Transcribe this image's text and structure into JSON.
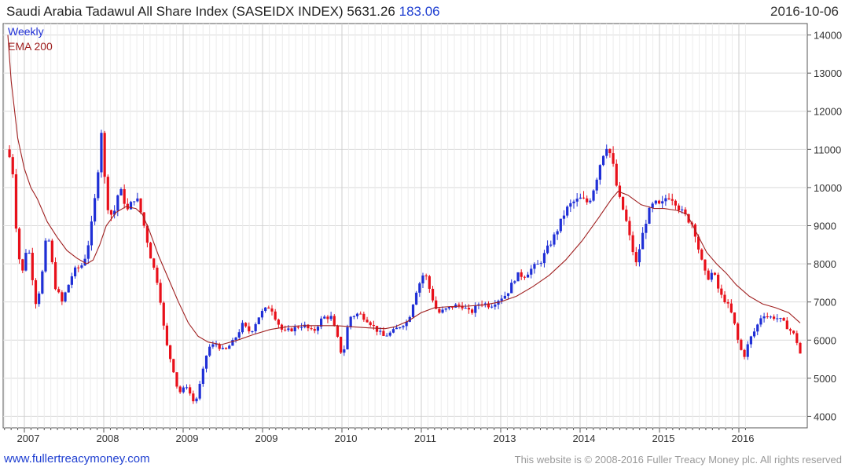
{
  "header": {
    "title": "Saudi Arabia Tadawul All Share Index (SASEIDX INDEX)",
    "last_value": "5631.26",
    "change": "183.06",
    "date": "2016-10-06"
  },
  "legend": {
    "weekly": "Weekly",
    "ema": "EMA 200"
  },
  "colors": {
    "up": "#1f2fd6",
    "down": "#e8101a",
    "ema": "#a02020",
    "grid": "#d9d9d9",
    "accent": "#1f3fd1"
  },
  "footer": {
    "website": "www.fullertreacymoney.com",
    "copyright": "This website is © 2008-2016 Fuller Treacy Money plc. All rights reserved"
  },
  "chart_data": {
    "type": "candlestick",
    "period": "weekly",
    "yticks": [
      4000,
      5000,
      6000,
      7000,
      8000,
      9000,
      10000,
      11000,
      12000,
      13000,
      14000
    ],
    "xtick_labels": [
      "2007",
      "2008",
      "2009",
      "2009",
      "2010",
      "2011",
      "2013",
      "2014",
      "2015",
      "2016"
    ],
    "ylim": [
      3700,
      14300
    ],
    "grid": true,
    "legend_position": "top-left",
    "price_path": [
      [
        0,
        11000
      ],
      [
        1.5,
        10400
      ],
      [
        3,
        8300
      ],
      [
        4.5,
        7800
      ],
      [
        6,
        8600
      ],
      [
        8.5,
        7000
      ],
      [
        10,
        7400
      ],
      [
        12,
        8900
      ],
      [
        14.5,
        7400
      ],
      [
        16.5,
        7000
      ],
      [
        20,
        7800
      ],
      [
        23,
        8000
      ],
      [
        25,
        8700
      ],
      [
        27,
        10000
      ],
      [
        28.5,
        11500
      ],
      [
        30,
        9600
      ],
      [
        32,
        9200
      ],
      [
        34,
        10000
      ],
      [
        36.5,
        9400
      ],
      [
        39,
        9800
      ],
      [
        41,
        9200
      ],
      [
        43.5,
        8200
      ],
      [
        46,
        7400
      ],
      [
        48,
        6000
      ],
      [
        50.5,
        5200
      ],
      [
        52,
        4600
      ],
      [
        54.5,
        4800
      ],
      [
        57,
        4300
      ],
      [
        59,
        5000
      ],
      [
        61,
        5800
      ],
      [
        63.5,
        5900
      ],
      [
        66,
        5700
      ],
      [
        69,
        6000
      ],
      [
        71.5,
        6400
      ],
      [
        74,
        6200
      ],
      [
        77,
        6700
      ],
      [
        80,
        6900
      ],
      [
        82,
        6500
      ],
      [
        84,
        6200
      ],
      [
        87,
        6300
      ],
      [
        90,
        6400
      ],
      [
        93,
        6200
      ],
      [
        96,
        6600
      ],
      [
        98.5,
        6600
      ],
      [
        101,
        5900
      ],
      [
        102,
        5500
      ],
      [
        104,
        6600
      ],
      [
        107,
        6700
      ],
      [
        110,
        6500
      ],
      [
        112,
        6300
      ],
      [
        114.5,
        6100
      ],
      [
        117,
        6200
      ],
      [
        120,
        6400
      ],
      [
        122,
        6500
      ],
      [
        124.5,
        7300
      ],
      [
        127,
        7800
      ],
      [
        129,
        7200
      ],
      [
        131,
        6700
      ],
      [
        133.5,
        6800
      ],
      [
        136,
        6900
      ],
      [
        138.5,
        6900
      ],
      [
        141,
        6700
      ],
      [
        144,
        7000
      ],
      [
        147,
        6900
      ],
      [
        150,
        7100
      ],
      [
        152,
        7200
      ],
      [
        155,
        7700
      ],
      [
        157.5,
        7700
      ],
      [
        160,
        7900
      ],
      [
        162,
        8000
      ],
      [
        164.5,
        8400
      ],
      [
        167,
        8800
      ],
      [
        170,
        9400
      ],
      [
        172,
        9600
      ],
      [
        174.5,
        9700
      ],
      [
        177,
        9600
      ],
      [
        179,
        10100
      ],
      [
        181,
        10800
      ],
      [
        182.5,
        11100
      ],
      [
        184,
        10800
      ],
      [
        186,
        9800
      ],
      [
        188,
        9300
      ],
      [
        190,
        8500
      ],
      [
        191.5,
        8000
      ],
      [
        193,
        8600
      ],
      [
        195,
        9300
      ],
      [
        197,
        9600
      ],
      [
        199,
        9500
      ],
      [
        201,
        9800
      ],
      [
        203,
        9700
      ],
      [
        205,
        9400
      ],
      [
        207,
        9200
      ],
      [
        209,
        9000
      ],
      [
        211,
        8200
      ],
      [
        213,
        7600
      ],
      [
        215,
        7800
      ],
      [
        217,
        7200
      ],
      [
        219,
        7000
      ],
      [
        221,
        6600
      ],
      [
        223,
        5800
      ],
      [
        224.5,
        5600
      ],
      [
        226,
        6000
      ],
      [
        228,
        6300
      ],
      [
        230,
        6700
      ],
      [
        232,
        6600
      ],
      [
        234,
        6600
      ],
      [
        236,
        6500
      ],
      [
        238,
        6300
      ],
      [
        240,
        6100
      ],
      [
        241.5,
        5650
      ]
    ],
    "ema_200": [
      [
        0,
        14000
      ],
      [
        1,
        12800
      ],
      [
        3,
        11300
      ],
      [
        5,
        10500
      ],
      [
        7,
        10000
      ],
      [
        9,
        9700
      ],
      [
        12,
        9100
      ],
      [
        15,
        8700
      ],
      [
        18,
        8350
      ],
      [
        21,
        8150
      ],
      [
        24,
        8000
      ],
      [
        26,
        8100
      ],
      [
        28,
        8500
      ],
      [
        30,
        9000
      ],
      [
        33,
        9350
      ],
      [
        36,
        9500
      ],
      [
        39,
        9450
      ],
      [
        41,
        9300
      ],
      [
        43,
        8900
      ],
      [
        46,
        8200
      ],
      [
        49,
        7600
      ],
      [
        52,
        7000
      ],
      [
        55,
        6450
      ],
      [
        58,
        6100
      ],
      [
        61,
        5950
      ],
      [
        65,
        5880
      ],
      [
        70,
        6000
      ],
      [
        75,
        6150
      ],
      [
        80,
        6280
      ],
      [
        85,
        6350
      ],
      [
        90,
        6380
      ],
      [
        95,
        6380
      ],
      [
        100,
        6380
      ],
      [
        105,
        6350
      ],
      [
        110,
        6320
      ],
      [
        115,
        6300
      ],
      [
        118,
        6350
      ],
      [
        122,
        6500
      ],
      [
        126,
        6720
      ],
      [
        130,
        6850
      ],
      [
        135,
        6880
      ],
      [
        140,
        6890
      ],
      [
        145,
        6920
      ],
      [
        150,
        7000
      ],
      [
        155,
        7150
      ],
      [
        160,
        7400
      ],
      [
        165,
        7700
      ],
      [
        170,
        8100
      ],
      [
        175,
        8600
      ],
      [
        180,
        9200
      ],
      [
        184,
        9700
      ],
      [
        186,
        9900
      ],
      [
        189,
        9800
      ],
      [
        193,
        9550
      ],
      [
        197,
        9450
      ],
      [
        200,
        9450
      ],
      [
        204,
        9400
      ],
      [
        207,
        9300
      ],
      [
        210,
        8800
      ],
      [
        213,
        8300
      ],
      [
        216,
        8000
      ],
      [
        219,
        7750
      ],
      [
        222,
        7450
      ],
      [
        226,
        7150
      ],
      [
        230,
        6950
      ],
      [
        234,
        6850
      ],
      [
        238,
        6720
      ],
      [
        241.5,
        6450
      ]
    ]
  }
}
